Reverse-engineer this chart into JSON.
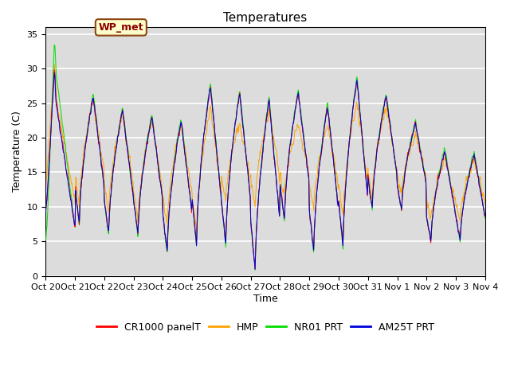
{
  "title": "Temperatures",
  "xlabel": "Time",
  "ylabel": "Temperature (C)",
  "ylim": [
    0,
    36
  ],
  "yticks": [
    0,
    5,
    10,
    15,
    20,
    25,
    30,
    35
  ],
  "xtick_labels": [
    "Oct 20",
    "Oct 21",
    "Oct 22",
    "Oct 23",
    "Oct 24",
    "Oct 25",
    "Oct 26",
    "Oct 27",
    "Oct 28",
    "Oct 29",
    "Oct 30",
    "Oct 31",
    "Nov 1",
    "Nov 2",
    "Nov 3",
    "Nov 4"
  ],
  "series_colors": {
    "CR1000 panelT": "#ff0000",
    "HMP": "#ffa500",
    "NR01 PRT": "#00dd00",
    "AM25T PRT": "#0000dd"
  },
  "annotation_text": "WP_met",
  "bg_color": "#dcdcdc",
  "grid_color": "#ffffff",
  "title_fontsize": 11,
  "axis_fontsize": 9,
  "tick_fontsize": 8
}
